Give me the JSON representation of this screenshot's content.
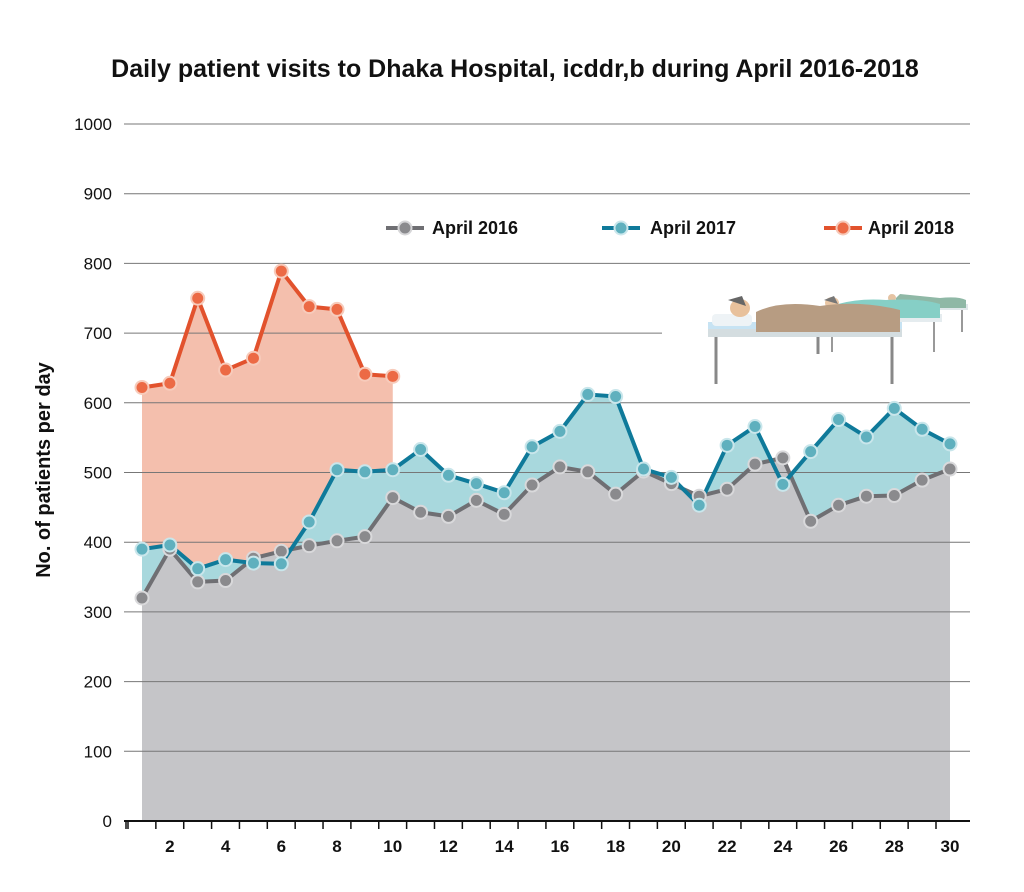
{
  "chart_data": {
    "type": "area",
    "title": "Daily patient visits to Dhaka Hospital, icddr,b during April 2016-2018",
    "xlabel": "",
    "ylabel": "No. of patients per day",
    "xlim": [
      1,
      30
    ],
    "ylim": [
      0,
      1000
    ],
    "yticks": [
      0,
      100,
      200,
      300,
      400,
      500,
      600,
      700,
      800,
      900,
      1000
    ],
    "xticks": [
      2,
      4,
      6,
      8,
      10,
      12,
      14,
      16,
      18,
      20,
      22,
      24,
      26,
      28,
      30
    ],
    "grid": true,
    "legend_position": "top-right",
    "series": [
      {
        "name": "April 2016",
        "color": "#6f6f73",
        "fill": "#c5c5c8",
        "x": [
          1,
          2,
          3,
          4,
          5,
          6,
          7,
          8,
          9,
          10,
          11,
          12,
          13,
          14,
          15,
          16,
          17,
          18,
          19,
          20,
          21,
          22,
          23,
          24,
          25,
          26,
          27,
          28,
          29,
          30
        ],
        "values": [
          320,
          390,
          343,
          345,
          377,
          387,
          395,
          402,
          408,
          464,
          443,
          437,
          460,
          440,
          482,
          508,
          501,
          469,
          502,
          484,
          466,
          476,
          512,
          521,
          430,
          453,
          466,
          467,
          489,
          505
        ]
      },
      {
        "name": "April 2017",
        "color": "#0f7a9a",
        "fill": "#a8d8dd",
        "x": [
          1,
          2,
          3,
          4,
          5,
          6,
          7,
          8,
          9,
          10,
          11,
          12,
          13,
          14,
          15,
          16,
          17,
          18,
          19,
          20,
          21,
          22,
          23,
          24,
          25,
          26,
          27,
          28,
          29,
          30
        ],
        "values": [
          390,
          396,
          362,
          375,
          370,
          369,
          429,
          504,
          501,
          504,
          533,
          496,
          484,
          471,
          537,
          559,
          612,
          609,
          505,
          493,
          453,
          539,
          566,
          483,
          530,
          576,
          551,
          592,
          562,
          541
        ]
      },
      {
        "name": "April 2018",
        "color": "#e2522d",
        "fill": "#f4bfad",
        "x": [
          1,
          2,
          3,
          4,
          5,
          6,
          7,
          8,
          9,
          10
        ],
        "values": [
          622,
          628,
          750,
          647,
          664,
          789,
          738,
          734,
          641,
          638
        ]
      }
    ],
    "illustration": "hospital-beds-patients"
  },
  "colors": {
    "grid": "#777777",
    "axis": "#111111",
    "marker_fill_2016": "#8a8a8d",
    "marker_fill_2017": "#5fb0be",
    "marker_fill_2018": "#ec6a45"
  }
}
